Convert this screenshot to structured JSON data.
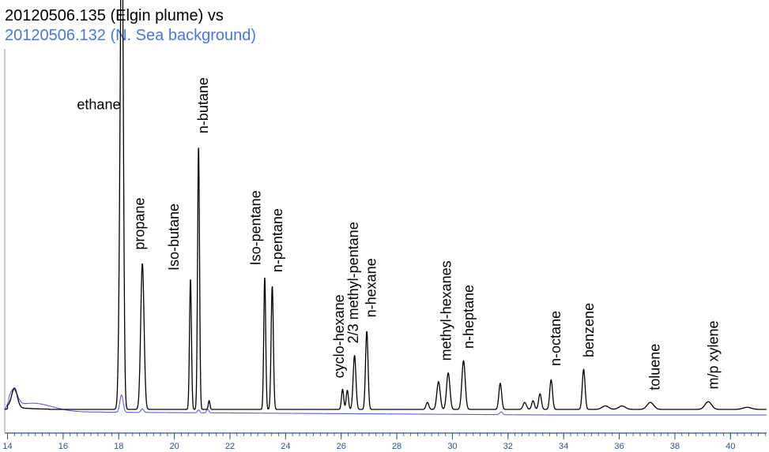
{
  "chart_data": {
    "type": "line",
    "title": "20120506.135 (Elgin plume) vs",
    "subtitle": "20120506.132 (N. Sea background)",
    "xlabel": "",
    "ylabel": "",
    "xlim": [
      13.9,
      41.3
    ],
    "ylim": [
      0,
      100
    ],
    "grid": false,
    "x_ticks": [
      14,
      16,
      18,
      20,
      22,
      24,
      26,
      28,
      30,
      32,
      34,
      36,
      38,
      40
    ],
    "x_minor_step": 0.25,
    "colors": {
      "plume": "#000000",
      "background": "#5b5bf0",
      "title": "#000000",
      "subtitle": "#4a74e8",
      "axis": "#2a4f8a"
    },
    "series": [
      {
        "name": "20120506.135 (Elgin plume)",
        "baseline": 0,
        "peaks": [
          {
            "x": 14.25,
            "y": 5.5,
            "w": 0.1
          },
          {
            "x": 18.12,
            "y": 100,
            "w": 0.05
          },
          {
            "x": 18.08,
            "y": 60,
            "w": 0.06
          },
          {
            "x": 18.85,
            "y": 42,
            "w": 0.06
          },
          {
            "x": 20.58,
            "y": 37.5,
            "w": 0.035
          },
          {
            "x": 20.87,
            "y": 75.5,
            "w": 0.035
          },
          {
            "x": 21.25,
            "y": 2.5,
            "w": 0.03
          },
          {
            "x": 23.25,
            "y": 38,
            "w": 0.035
          },
          {
            "x": 23.52,
            "y": 35.5,
            "w": 0.04
          },
          {
            "x": 26.05,
            "y": 5.8,
            "w": 0.04
          },
          {
            "x": 26.22,
            "y": 5.5,
            "w": 0.04
          },
          {
            "x": 26.48,
            "y": 15.5,
            "w": 0.05
          },
          {
            "x": 26.92,
            "y": 22.5,
            "w": 0.045
          },
          {
            "x": 29.1,
            "y": 2.0,
            "w": 0.05
          },
          {
            "x": 29.5,
            "y": 8.0,
            "w": 0.06
          },
          {
            "x": 29.85,
            "y": 10.5,
            "w": 0.06
          },
          {
            "x": 30.4,
            "y": 14.0,
            "w": 0.06
          },
          {
            "x": 31.72,
            "y": 7.5,
            "w": 0.05
          },
          {
            "x": 32.6,
            "y": 2.0,
            "w": 0.06
          },
          {
            "x": 32.9,
            "y": 2.5,
            "w": 0.05
          },
          {
            "x": 33.15,
            "y": 4.5,
            "w": 0.05
          },
          {
            "x": 33.55,
            "y": 8.5,
            "w": 0.05
          },
          {
            "x": 34.72,
            "y": 11.5,
            "w": 0.05
          },
          {
            "x": 35.5,
            "y": 1.0,
            "w": 0.12
          },
          {
            "x": 36.1,
            "y": 1.0,
            "w": 0.12
          },
          {
            "x": 37.12,
            "y": 2.0,
            "w": 0.12
          },
          {
            "x": 39.2,
            "y": 2.2,
            "w": 0.12
          },
          {
            "x": 40.6,
            "y": 0.6,
            "w": 0.15
          }
        ]
      },
      {
        "name": "20120506.132 (N. Sea background)",
        "baseline": -1.6,
        "peaks": [
          {
            "x": 14.2,
            "y": 5.0,
            "w": 0.15
          },
          {
            "x": 14.9,
            "y": 2.5,
            "w": 0.7
          },
          {
            "x": 18.1,
            "y": 5.0,
            "w": 0.06
          },
          {
            "x": 18.85,
            "y": 1.0,
            "w": 0.05
          },
          {
            "x": 20.87,
            "y": 0.8,
            "w": 0.04
          },
          {
            "x": 21.2,
            "y": 1.0,
            "w": 0.04
          },
          {
            "x": 31.75,
            "y": 0.8,
            "w": 0.05
          }
        ]
      }
    ],
    "annotations": [
      {
        "text": "ethane",
        "x": 18.12,
        "y": 86.5,
        "rotation": 0
      },
      {
        "text": "propane",
        "x": 18.92,
        "y": 46,
        "rotation": -90
      },
      {
        "text": "Iso-butane",
        "x": 20.15,
        "y": 40,
        "rotation": -90
      },
      {
        "text": "n-butane",
        "x": 21.2,
        "y": 79.5,
        "rotation": -90
      },
      {
        "text": "Iso-pentane",
        "x": 23.1,
        "y": 41.5,
        "rotation": -90
      },
      {
        "text": "n-pentane",
        "x": 23.88,
        "y": 39.5,
        "rotation": -90
      },
      {
        "text": "cyclo-hexane",
        "x": 26.1,
        "y": 9,
        "rotation": -90
      },
      {
        "text": "2/3 methyl-pentane",
        "x": 26.6,
        "y": 19,
        "rotation": -90
      },
      {
        "text": "n-hexane",
        "x": 27.25,
        "y": 26.5,
        "rotation": -90
      },
      {
        "text": "methyl-hexanes",
        "x": 29.95,
        "y": 14,
        "rotation": -90
      },
      {
        "text": "n-heptane",
        "x": 30.75,
        "y": 17.5,
        "rotation": -90
      },
      {
        "text": "n-octane",
        "x": 33.88,
        "y": 12.5,
        "rotation": -90
      },
      {
        "text": "benzene",
        "x": 35.08,
        "y": 15,
        "rotation": -90
      },
      {
        "text": "toluene",
        "x": 37.45,
        "y": 5.5,
        "rotation": -90
      },
      {
        "text": "m/p xylene",
        "x": 39.55,
        "y": 5.8,
        "rotation": -90
      }
    ]
  }
}
